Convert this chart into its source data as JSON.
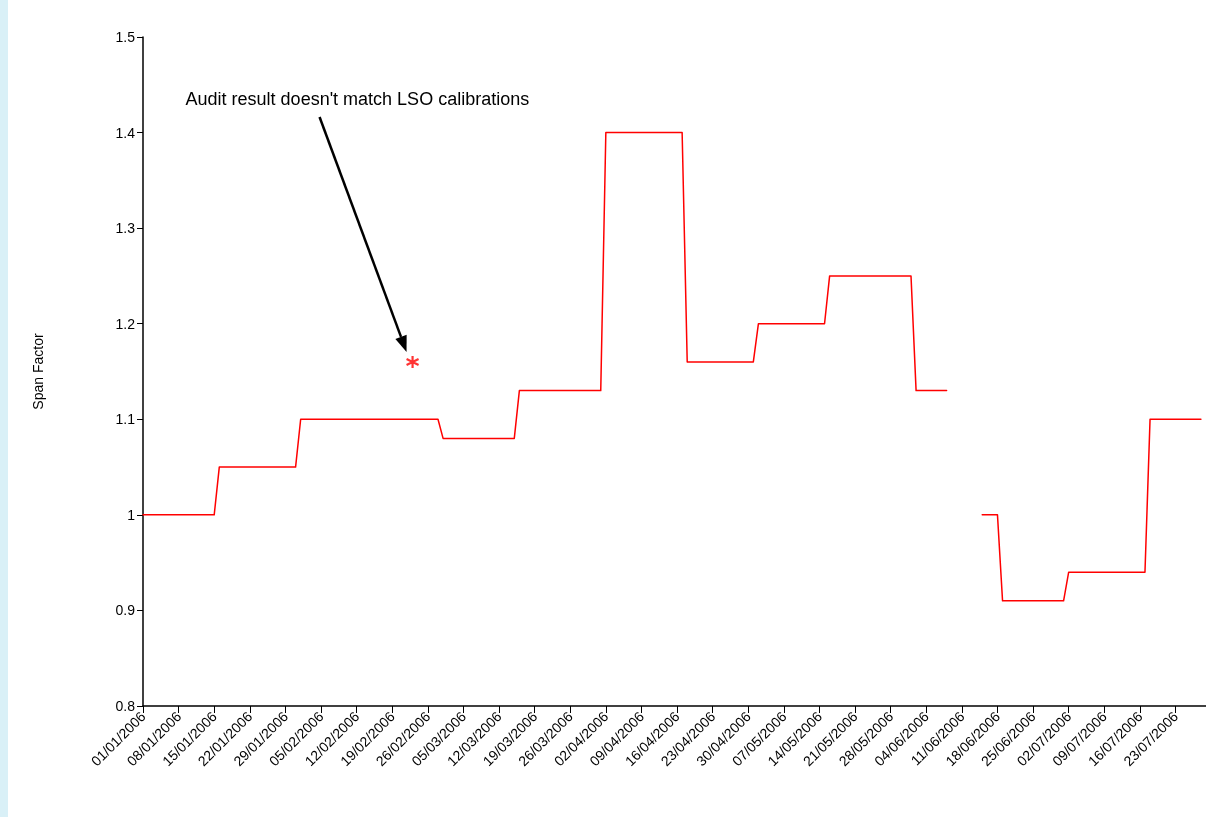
{
  "chart_data": {
    "type": "line",
    "ylabel": "Span Factor",
    "annotations": [
      "Audit result doesn't match LSO calibrations"
    ],
    "series": [
      {
        "color": "#ff0000",
        "x": [
          "2006-01-01",
          "2006-01-15",
          "2006-01-16",
          "2006-01-31",
          "2006-02-01",
          "2006-02-28",
          "2006-03-01",
          "2006-03-15",
          "2006-03-16",
          "2006-04-01",
          "2006-04-02",
          "2006-04-17",
          "2006-04-18",
          "2006-05-01",
          "2006-05-02",
          "2006-05-15",
          "2006-05-16",
          "2006-06-01",
          "2006-06-02",
          "2006-06-08",
          "2006-06-09",
          "2006-06-15",
          "2006-06-18",
          "2006-06-19",
          "2006-07-01",
          "2006-07-02",
          "2006-07-17",
          "2006-07-18",
          "2006-07-28"
        ],
        "values": [
          1.0,
          1.0,
          1.05,
          1.05,
          1.1,
          1.1,
          1.08,
          1.08,
          1.13,
          1.13,
          1.4,
          1.4,
          1.16,
          1.16,
          1.2,
          1.2,
          1.25,
          1.25,
          1.13,
          1.13,
          null,
          1.0,
          1.0,
          0.91,
          0.91,
          0.94,
          0.94,
          1.1,
          1.1
        ]
      },
      {
        "type": "scatter",
        "color": "#ff0000",
        "marker": "cross",
        "x": [
          "2006-02-23"
        ],
        "values": [
          1.16
        ]
      }
    ],
    "xlim": [
      "2006-01-01",
      "2006-07-29"
    ],
    "xticks": [
      {
        "value": "2006-01-01",
        "label": "01/01/2006"
      },
      {
        "value": "2006-01-08",
        "label": "08/01/2006"
      },
      {
        "value": "2006-01-15",
        "label": "15/01/2006"
      },
      {
        "value": "2006-01-22",
        "label": "22/01/2006"
      },
      {
        "value": "2006-01-29",
        "label": "29/01/2006"
      },
      {
        "value": "2006-02-05",
        "label": "05/02/2006"
      },
      {
        "value": "2006-02-12",
        "label": "12/02/2006"
      },
      {
        "value": "2006-02-19",
        "label": "19/02/2006"
      },
      {
        "value": "2006-02-26",
        "label": "26/02/2006"
      },
      {
        "value": "2006-03-05",
        "label": "05/03/2006"
      },
      {
        "value": "2006-03-12",
        "label": "12/03/2006"
      },
      {
        "value": "2006-03-19",
        "label": "19/03/2006"
      },
      {
        "value": "2006-03-26",
        "label": "26/03/2006"
      },
      {
        "value": "2006-04-02",
        "label": "02/04/2006"
      },
      {
        "value": "2006-04-09",
        "label": "09/04/2006"
      },
      {
        "value": "2006-04-16",
        "label": "16/04/2006"
      },
      {
        "value": "2006-04-23",
        "label": "23/04/2006"
      },
      {
        "value": "2006-04-30",
        "label": "30/04/2006"
      },
      {
        "value": "2006-05-07",
        "label": "07/05/2006"
      },
      {
        "value": "2006-05-14",
        "label": "14/05/2006"
      },
      {
        "value": "2006-05-21",
        "label": "21/05/2006"
      },
      {
        "value": "2006-05-28",
        "label": "28/05/2006"
      },
      {
        "value": "2006-06-04",
        "label": "04/06/2006"
      },
      {
        "value": "2006-06-11",
        "label": "11/06/2006"
      },
      {
        "value": "2006-06-18",
        "label": "18/06/2006"
      },
      {
        "value": "2006-06-25",
        "label": "25/06/2006"
      },
      {
        "value": "2006-07-02",
        "label": "02/07/2006"
      },
      {
        "value": "2006-07-09",
        "label": "09/07/2006"
      },
      {
        "value": "2006-07-16",
        "label": "16/07/2006"
      },
      {
        "value": "2006-07-23",
        "label": "23/07/2006"
      }
    ],
    "ylim": [
      0.8,
      1.5
    ],
    "yticks": [
      0.8,
      0.9,
      1,
      1.1,
      1.2,
      1.3,
      1.4,
      1.5
    ],
    "grid": false,
    "line_style": "solid"
  }
}
